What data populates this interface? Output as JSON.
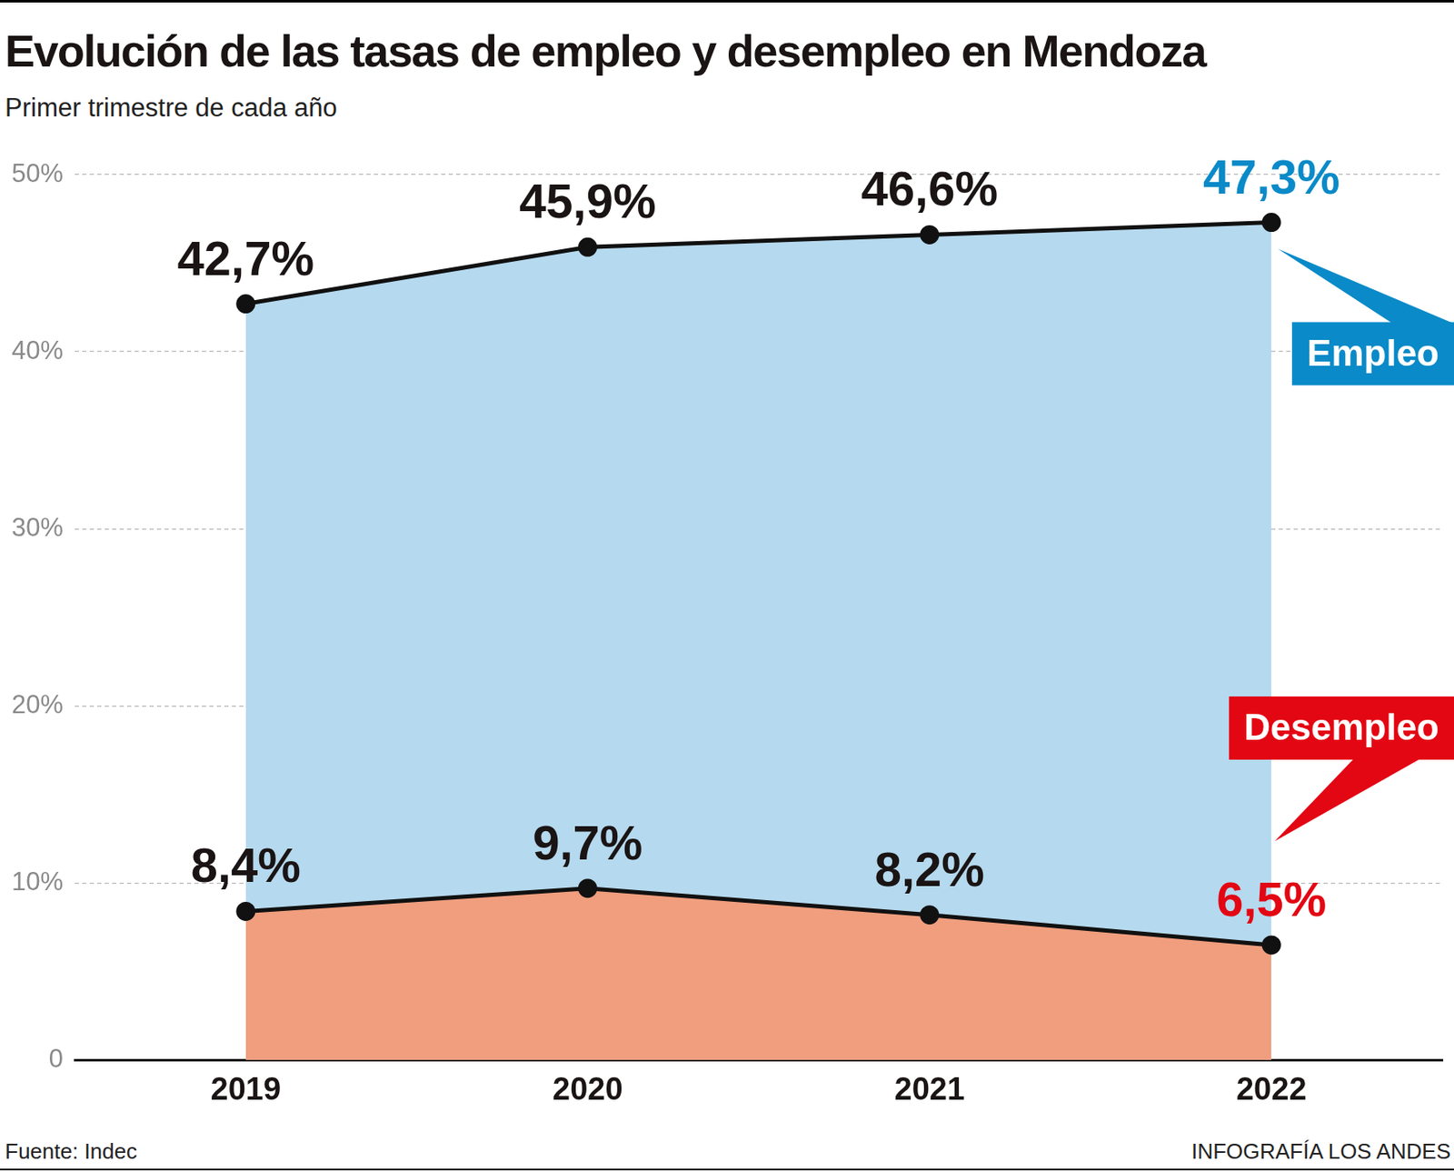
{
  "chart_data": {
    "type": "line",
    "title": "Evolución de las tasas de empleo y desempleo en Mendoza",
    "subtitle": "Primer trimestre de cada año",
    "source": "Fuente: Indec",
    "credit": "INFOGRAFÍA LOS ANDES",
    "categories": [
      "2019",
      "2020",
      "2021",
      "2022"
    ],
    "series": [
      {
        "name": "Empleo",
        "color": "#b5d9ee",
        "values": [
          42.7,
          45.9,
          46.6,
          47.3
        ],
        "value_labels": [
          "42,7%",
          "45,9%",
          "46,6%",
          "47,3%"
        ]
      },
      {
        "name": "Desempleo",
        "color": "#f09e7e",
        "values": [
          8.4,
          9.7,
          8.2,
          6.5
        ],
        "value_labels": [
          "8,4%",
          "9,7%",
          "8,2%",
          "6,5%"
        ]
      }
    ],
    "ylim": [
      0,
      50
    ],
    "yticks": [
      0,
      {
        "value": 10,
        "label": "10%"
      },
      {
        "value": 20,
        "label": "20%"
      },
      {
        "value": 30,
        "label": "30%"
      },
      {
        "value": 40,
        "label": "40%"
      },
      {
        "value": 50,
        "label": "50%"
      }
    ],
    "grid": true,
    "data_labels": true
  }
}
